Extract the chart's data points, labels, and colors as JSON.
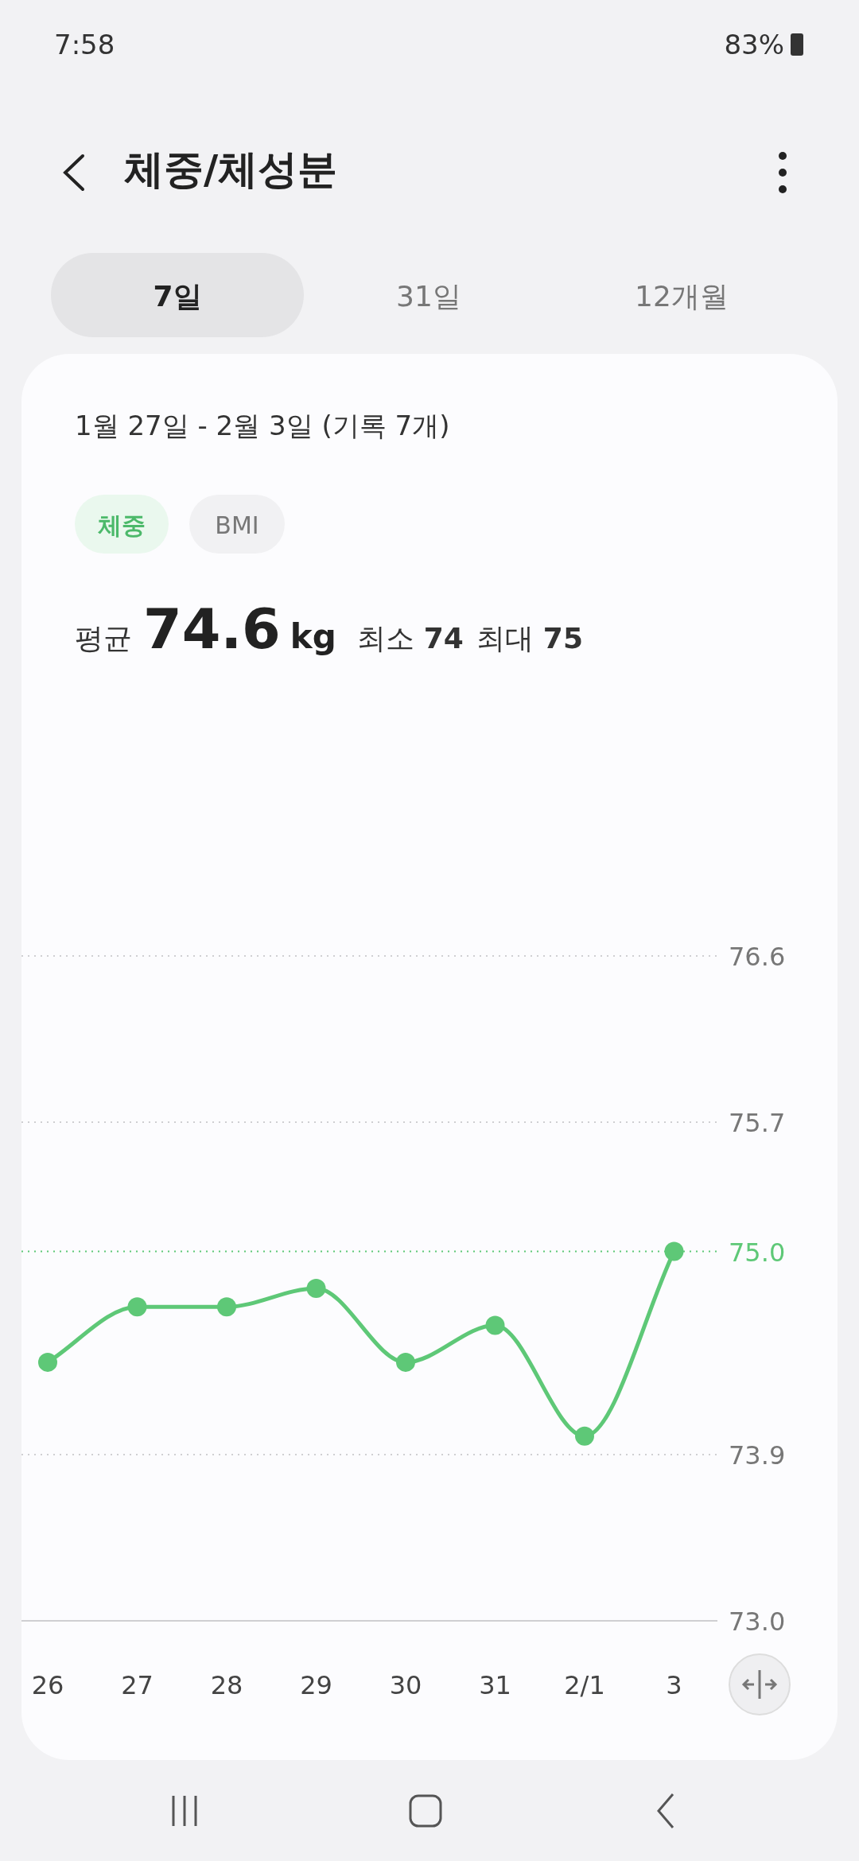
{
  "chart_data": {
    "type": "line",
    "title": "체중/체성분",
    "subtitle": "1월 27일 - 2월 3일 (기록 7개)",
    "annotations": [
      "7:58",
      "83%",
      "7일",
      "31일",
      "12개월",
      "체중",
      "BMI",
      "평균",
      "74.6",
      "kg",
      "최소",
      "74",
      "최대",
      "75"
    ],
    "categories": [
      "26",
      "27",
      "28",
      "29",
      "30",
      "31",
      "2/1",
      "3"
    ],
    "series": [
      {
        "color": "#5ec877",
        "values": [
          74.4,
          74.7,
          74.7,
          74.8,
          74.4,
          74.6,
          74.0,
          75.0
        ]
      }
    ],
    "ylim": [
      73.0,
      76.6
    ],
    "yticks": [
      {
        "value": 73.0,
        "label": "73.0"
      },
      {
        "value": 73.9,
        "label": "73.9"
      },
      {
        "value": 75.0,
        "label": "75.0"
      },
      {
        "value": 75.7,
        "label": "75.7"
      },
      {
        "value": 76.6,
        "label": "76.6"
      }
    ],
    "grid": "y",
    "ref_lines": [
      {
        "axis": "y",
        "value": 75.0,
        "label": null,
        "color": "#5ec877",
        "line_style": "dotted"
      }
    ],
    "marker": "circle",
    "line_style": "solid"
  }
}
